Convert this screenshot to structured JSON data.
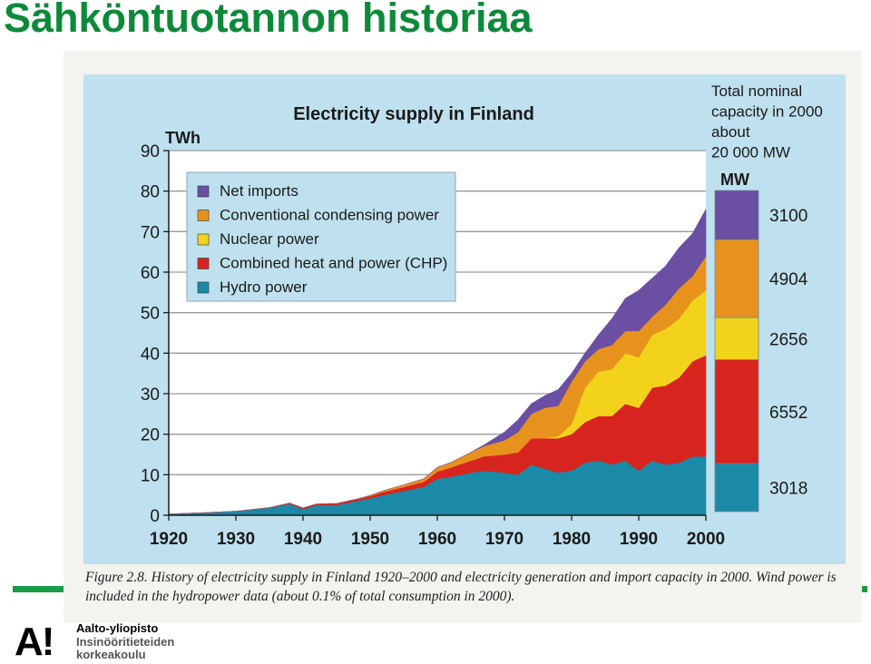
{
  "slide": {
    "title": "Sähköntuotannon historiaa",
    "logo_mark": "A!",
    "logo_lines": [
      "Aalto-yliopisto",
      "Insinööritieteiden",
      "korkeakoulu"
    ]
  },
  "caption": "Figure 2.8. History of electricity supply in Finland 1920–2000 and electricity generation and import capacity in 2000. Wind power is included in the hydropower data (about 0.1% of total consumption in 2000).",
  "colors": {
    "hydro": "#1a8aa6",
    "chp": "#d8241e",
    "nuclear": "#f2d21b",
    "condensing": "#e8921e",
    "imports": "#6a4fa3",
    "plot_bg": "#ffffff",
    "panel_bg": "#bfe0ee"
  },
  "chart_data": {
    "type": "area",
    "title": "Electricity supply in Finland",
    "ylabel": "TWh",
    "ylim": [
      0,
      90
    ],
    "xlim": [
      1920,
      2000
    ],
    "yticks": [
      0,
      10,
      20,
      30,
      40,
      50,
      60,
      70,
      80,
      90
    ],
    "xticks": [
      1920,
      1930,
      1940,
      1950,
      1960,
      1970,
      1980,
      1990,
      2000
    ],
    "grid": true,
    "legend_position": "top-left",
    "stacking": "stacked",
    "x": [
      1920,
      1925,
      1930,
      1935,
      1938,
      1940,
      1942,
      1945,
      1948,
      1950,
      1952,
      1955,
      1958,
      1960,
      1962,
      1965,
      1967,
      1970,
      1972,
      1974,
      1976,
      1978,
      1980,
      1982,
      1984,
      1986,
      1988,
      1990,
      1992,
      1994,
      1996,
      1998,
      2000
    ],
    "series": [
      {
        "name": "Hydro power",
        "key": "hydro",
        "values": [
          0.3,
          0.6,
          1.0,
          1.8,
          2.8,
          1.5,
          2.5,
          2.5,
          3.5,
          4.2,
          5.0,
          6.0,
          7.0,
          9.0,
          9.5,
          10.5,
          11.0,
          10.5,
          10.0,
          12.5,
          11.5,
          10.5,
          11.0,
          13.0,
          13.5,
          12.5,
          13.5,
          11.0,
          13.5,
          12.5,
          13.0,
          14.5,
          14.5
        ]
      },
      {
        "name": "Combined heat and power (CHP)",
        "key": "chp",
        "values": [
          0,
          0,
          0,
          0.1,
          0.2,
          0.3,
          0.3,
          0.4,
          0.5,
          0.6,
          0.8,
          1.0,
          1.3,
          1.8,
          2.3,
          3.0,
          3.6,
          4.5,
          5.5,
          6.5,
          7.5,
          8.5,
          9.0,
          10.0,
          11.0,
          12.0,
          14.0,
          15.5,
          18.0,
          19.5,
          21.0,
          23.5,
          25.0
        ]
      },
      {
        "name": "Nuclear power",
        "key": "nuclear",
        "values": [
          0,
          0,
          0,
          0,
          0,
          0,
          0,
          0,
          0,
          0,
          0,
          0,
          0,
          0,
          0,
          0,
          0,
          0,
          0,
          0,
          0,
          0.5,
          2.5,
          8.5,
          11.0,
          11.5,
          12.5,
          12.5,
          13.0,
          14.0,
          14.5,
          15.0,
          16.0
        ]
      },
      {
        "name": "Conventional condensing power",
        "key": "condensing",
        "values": [
          0,
          0,
          0,
          0,
          0,
          0,
          0,
          0,
          0,
          0.1,
          0.3,
          0.5,
          0.7,
          1.0,
          1.2,
          2.0,
          2.5,
          3.5,
          5.0,
          6.0,
          7.5,
          7.5,
          10.5,
          6.5,
          5.5,
          6.0,
          5.5,
          6.5,
          4.5,
          6.0,
          7.5,
          6.0,
          8.5
        ]
      },
      {
        "name": "Net imports",
        "key": "imports",
        "values": [
          0,
          0,
          0,
          0,
          0,
          0,
          0,
          0,
          0,
          0,
          0,
          0,
          0,
          0,
          0,
          0,
          0.3,
          2.0,
          3.0,
          2.5,
          3.0,
          4.0,
          2.0,
          2.0,
          3.5,
          6.5,
          8.0,
          10.0,
          9.5,
          9.5,
          10.0,
          10.5,
          11.5
        ]
      }
    ],
    "legend_order": [
      "imports",
      "condensing",
      "nuclear",
      "chp",
      "hydro"
    ],
    "capacity_panel": {
      "note_lines": [
        "Total nominal",
        "capacity in 2000",
        "about",
        "20 000 MW"
      ],
      "unit": "MW",
      "segments": [
        {
          "key": "hydro",
          "value": 3018
        },
        {
          "key": "chp",
          "value": 6552
        },
        {
          "key": "nuclear",
          "value": 2656
        },
        {
          "key": "condensing",
          "value": 4904
        },
        {
          "key": "imports",
          "value": 3100
        }
      ]
    }
  }
}
